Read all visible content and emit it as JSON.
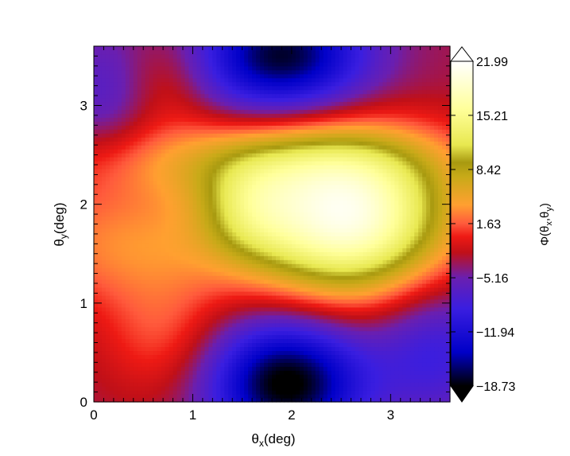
{
  "chart_data": {
    "type": "heatmap",
    "title": "",
    "xlabel": {
      "base": "θ",
      "sub": "x",
      "rest": "(deg)"
    },
    "ylabel": {
      "base": "θ",
      "sub": "y",
      "rest": "(deg)"
    },
    "xlim": [
      0,
      3.6
    ],
    "ylim": [
      0,
      3.6
    ],
    "x_ticks": [
      0,
      1,
      2,
      3
    ],
    "y_ticks": [
      0,
      1,
      2,
      3
    ],
    "colorbar": {
      "label": "Φ(θx,θy)",
      "label_parts": {
        "pre": "Φ(θ",
        "s1": "x",
        "mid": ",θ",
        "s2": "y",
        "post": ")"
      },
      "min": -18.73,
      "max": 21.99,
      "tick_values": [
        21.99,
        15.21,
        8.42,
        1.63,
        -5.16,
        -11.94,
        -18.73
      ],
      "tick_labels": [
        "21.99",
        "15.21",
        "8.42",
        "1.63",
        "−5.16",
        "−11.94",
        "−18.73"
      ],
      "extend": "both",
      "colormap": [
        {
          "v": -18.73,
          "color": "#000000"
        },
        {
          "v": -14.5,
          "color": "#0000c8"
        },
        {
          "v": -9.0,
          "color": "#3a1ee0"
        },
        {
          "v": -5.16,
          "color": "#6a1fb0"
        },
        {
          "v": -2.0,
          "color": "#c01018"
        },
        {
          "v": 0.0,
          "color": "#ee1a14"
        },
        {
          "v": 1.63,
          "color": "#ff5a3c"
        },
        {
          "v": 4.0,
          "color": "#ffa030"
        },
        {
          "v": 7.5,
          "color": "#c8aa18"
        },
        {
          "v": 9.3,
          "color": "#a89a10"
        },
        {
          "v": 11.5,
          "color": "#e8e850"
        },
        {
          "v": 16.0,
          "color": "#ffff9a"
        },
        {
          "v": 21.99,
          "color": "#ffffff"
        }
      ]
    },
    "field": {
      "description_of_values": "Phi(theta_x, theta_y) values on the sky grid",
      "background": -3.0,
      "components": [
        {
          "x": 2.55,
          "y": 1.85,
          "amp": 23.0,
          "sx": 0.75,
          "sy": 0.55
        },
        {
          "x": 1.55,
          "y": 1.95,
          "amp": 6.0,
          "sx": 0.35,
          "sy": 0.35
        },
        {
          "x": 0.3,
          "y": 1.6,
          "amp": 6.0,
          "sx": 0.8,
          "sy": 0.45
        },
        {
          "x": 1.6,
          "y": 2.45,
          "amp": 7.0,
          "sx": 1.4,
          "sy": 0.3
        },
        {
          "x": 0.7,
          "y": 0.65,
          "amp": 4.0,
          "sx": 0.45,
          "sy": 0.45
        },
        {
          "x": 0.75,
          "y": 3.25,
          "amp": 3.0,
          "sx": 0.35,
          "sy": 0.35
        },
        {
          "x": 1.95,
          "y": 0.2,
          "amp": -16.5,
          "sx": 0.55,
          "sy": 0.45
        },
        {
          "x": 1.9,
          "y": 3.5,
          "amp": -15.0,
          "sx": 0.6,
          "sy": 0.4
        },
        {
          "x": 3.45,
          "y": 0.55,
          "amp": -6.0,
          "sx": 0.45,
          "sy": 0.5
        },
        {
          "x": 0.1,
          "y": 3.1,
          "amp": -4.0,
          "sx": 0.35,
          "sy": 0.5
        }
      ]
    },
    "grid": false,
    "legend": "none"
  }
}
